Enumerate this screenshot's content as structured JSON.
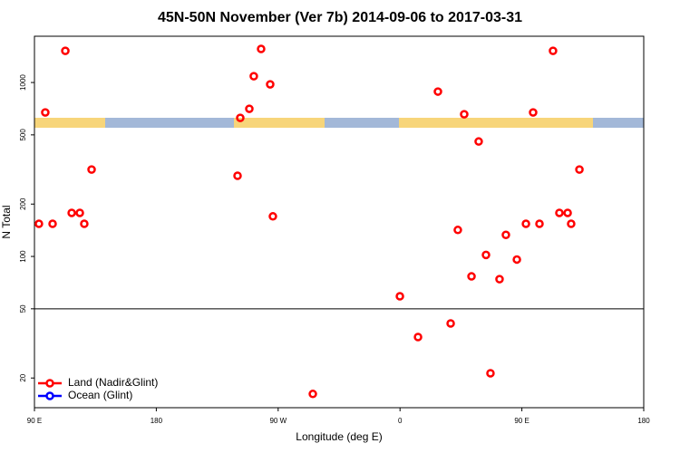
{
  "chart_data": {
    "type": "scatter",
    "title": "45N-50N November (Ver 7b)   2014-09-06 to 2017-03-31",
    "x_label": "Longitude (deg E)",
    "y_label": "N Total",
    "log_y": true,
    "xlim": [
      90,
      540
    ],
    "ylim": [
      13.5,
      1845
    ],
    "xticks": [
      {
        "value": 90,
        "label": "90 E"
      },
      180,
      {
        "value": 270,
        "label": "90 W"
      },
      {
        "value": 360,
        "label": "0"
      },
      {
        "value": 450,
        "label": "90 E"
      },
      {
        "value": 540,
        "label": "180"
      }
    ],
    "yticks": [
      20,
      50,
      100,
      200,
      500,
      1000
    ],
    "hline": 50,
    "legend_position": "bottom-left",
    "series": [
      {
        "name": "Land (Nadir&Glint)",
        "color": "#ff0000",
        "x": [
          93.3,
          98,
          103.4,
          112.8,
          117.5,
          123.5,
          126.8,
          132.2,
          240,
          242,
          248.7,
          252,
          257.4,
          264.1,
          266.1,
          295.6,
          359.9,
          373.3,
          388,
          397.4,
          402.7,
          407.4,
          412.8,
          418.1,
          423.5,
          426.8,
          433.5,
          438.2,
          446.3,
          453,
          458.3,
          463,
          473,
          477.7,
          483.8,
          486.4,
          492.5
        ],
        "values": [
          154,
          673,
          154,
          1521,
          178,
          178,
          154,
          316,
          291,
          626,
          706,
          1087,
          1559,
          976,
          170,
          16.2,
          59,
          34.4,
          887,
          41.2,
          142,
          657,
          76.8,
          458,
          102,
          21.3,
          74,
          133,
          96,
          154,
          673,
          154,
          1521,
          178,
          178,
          154,
          316
        ]
      },
      {
        "name": "Ocean (Glint)",
        "color": "#0000ff",
        "x": [],
        "values": []
      }
    ]
  }
}
